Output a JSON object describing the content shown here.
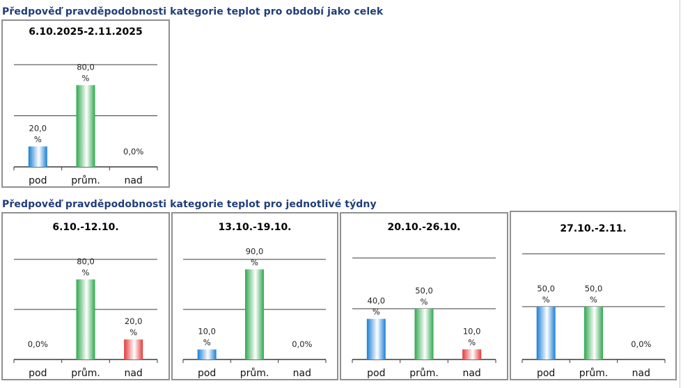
{
  "header": {
    "section_total": "Předpověď pravděpodobnosti kategorie teplot pro období jako celek",
    "section_weeks": "Předpověď pravděpodobnosti kategorie teplot pro jednotlivé týdny"
  },
  "colors": {
    "pod": "#1a7fd6",
    "prum": "#2fa84f",
    "nad": "#e23a3a"
  },
  "chart_data": [
    {
      "type": "bar",
      "title": "6.10.2025-2.11.2025",
      "categories": [
        "pod",
        "prům.",
        " nad"
      ],
      "values": [
        20,
        80,
        0
      ],
      "ylim": [
        0,
        100
      ],
      "labels": [
        [
          "20,0",
          "%"
        ],
        [
          "80,0",
          "%"
        ],
        [
          "0,0%"
        ]
      ]
    },
    {
      "type": "bar",
      "title": "6.10.-12.10.",
      "categories": [
        "pod",
        "prům.",
        "nad"
      ],
      "values": [
        0,
        80,
        20
      ],
      "ylim": [
        0,
        100
      ],
      "labels": [
        [
          "0,0%"
        ],
        [
          "80,0",
          "%"
        ],
        [
          "20,0",
          "%"
        ]
      ]
    },
    {
      "type": "bar",
      "title": "13.10.-19.10.",
      "categories": [
        "pod",
        "prům.",
        "nad"
      ],
      "values": [
        10,
        90,
        0
      ],
      "ylim": [
        0,
        100
      ],
      "labels": [
        [
          "10,0",
          "%"
        ],
        [
          "90,0",
          "%"
        ],
        [
          "0,0%"
        ]
      ]
    },
    {
      "type": "bar",
      "title": "20.10.-26.10.",
      "categories": [
        "pod",
        "prům.",
        "nad"
      ],
      "values": [
        40,
        50,
        10
      ],
      "ylim": [
        0,
        100
      ],
      "labels": [
        [
          "40,0",
          "%"
        ],
        [
          "50,0",
          "%"
        ],
        [
          "10,0",
          "%"
        ]
      ]
    },
    {
      "type": "bar",
      "title": "27.10.-2.11.",
      "categories": [
        "pod",
        "prům.",
        "nad"
      ],
      "values": [
        50,
        50,
        0
      ],
      "ylim": [
        0,
        100
      ],
      "labels": [
        [
          "50,0",
          "%"
        ],
        [
          "50,0",
          "%"
        ],
        [
          "0,0%"
        ]
      ]
    }
  ]
}
